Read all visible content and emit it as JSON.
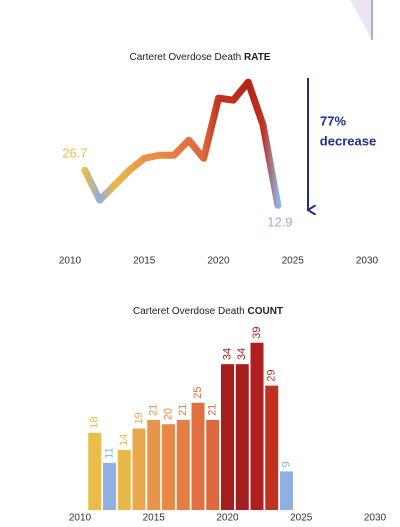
{
  "chart_data": [
    {
      "type": "line",
      "title": "Carteret Overdose Death",
      "title_emphasis": "RATE",
      "x": [
        2011,
        2012,
        2013,
        2014,
        2015,
        2016,
        2017,
        2018,
        2019,
        2020,
        2021,
        2022,
        2023,
        2024
      ],
      "values": [
        26.7,
        14.9,
        20.8,
        26.7,
        31.4,
        32.6,
        32.6,
        38.5,
        31.4,
        55.1,
        54.3,
        61.4,
        44.5,
        12.9
      ],
      "colors": [
        "#e8bd4a",
        "#8fb0e0",
        "#e8b84a",
        "#e9a94a",
        "#e8944a",
        "#e88a45",
        "#e37e45",
        "#e07040",
        "#dc6a3c",
        "#c2321e",
        "#c0301e",
        "#b52418",
        "#c0321e",
        "#8fb0e0"
      ],
      "labeled_points": [
        0,
        13
      ],
      "xlim": [
        2010,
        2030
      ],
      "xticks": [
        2010,
        2015,
        2020,
        2025,
        2030
      ],
      "ylim": [
        0,
        65
      ],
      "annotation": [
        "77%",
        "decrease"
      ]
    },
    {
      "type": "bar",
      "title": "Carteret Overdose Death",
      "title_emphasis": "COUNT",
      "x": [
        2011,
        2012,
        2013,
        2014,
        2015,
        2016,
        2017,
        2018,
        2019,
        2020,
        2021,
        2022,
        2023,
        2024
      ],
      "values": [
        18,
        11,
        14,
        19,
        21,
        20,
        21,
        25,
        21,
        34,
        34,
        39,
        29,
        9
      ],
      "colors": [
        "#e8bd4a",
        "#8fb0e0",
        "#e8b84a",
        "#e9a94a",
        "#e8944a",
        "#e88a45",
        "#e37e45",
        "#e07040",
        "#dc6a3c",
        "#a51d1d",
        "#a61e1e",
        "#b01f1f",
        "#c0321e",
        "#8fb0e0"
      ],
      "xlim": [
        2010,
        2030
      ],
      "xticks": [
        2010,
        2015,
        2020,
        2025,
        2030
      ],
      "ylim": [
        0,
        45
      ]
    }
  ]
}
